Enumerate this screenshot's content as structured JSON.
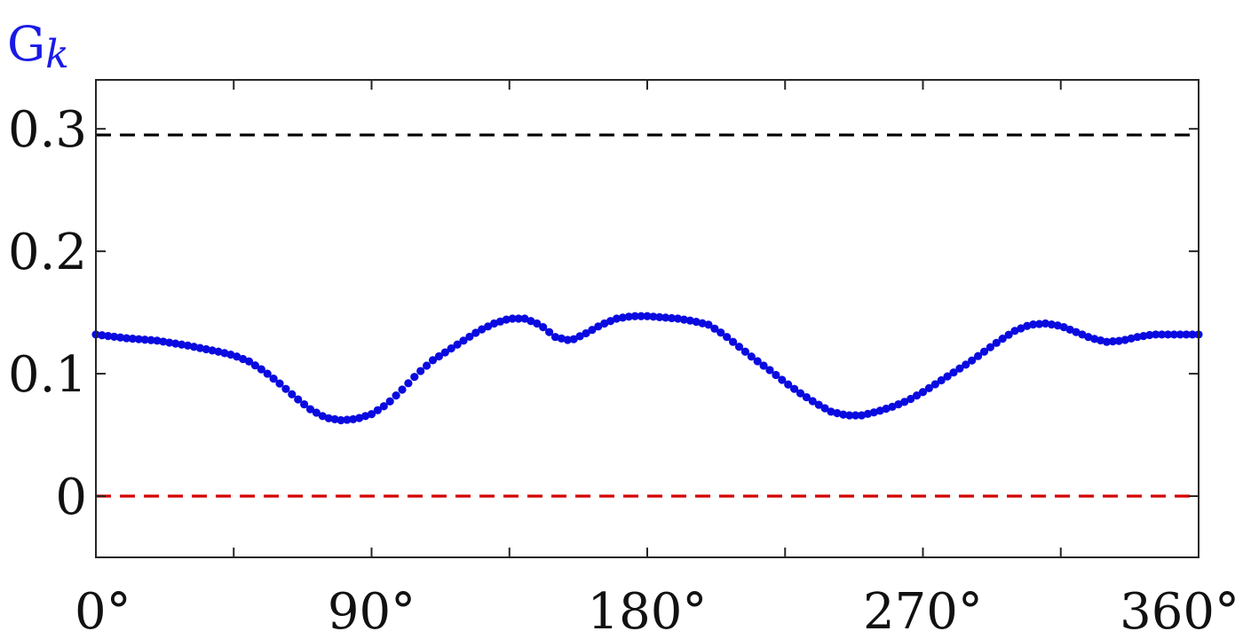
{
  "chart_data": {
    "type": "scatter",
    "title": "",
    "xlabel": "",
    "ylabel": "Gk",
    "ylabel_main": "G",
    "ylabel_sub": "k",
    "xlim": [
      0,
      360
    ],
    "ylim": [
      -0.05,
      0.34
    ],
    "x_ticks": [
      0,
      45,
      90,
      135,
      180,
      225,
      270,
      315,
      360
    ],
    "x_tick_labels": [
      "0°",
      "",
      "90°",
      "",
      "180°",
      "",
      "270°",
      "",
      "360°"
    ],
    "y_ticks": [
      0,
      0.1,
      0.2,
      0.3
    ],
    "y_tick_labels": [
      "0",
      "0.1",
      "0.2",
      "0.3"
    ],
    "grid": false,
    "reference_lines": [
      {
        "y": 0.295,
        "style": "dashed",
        "color": "#000000"
      },
      {
        "y": 0,
        "style": "dashed",
        "color": "#d40000"
      }
    ],
    "series": [
      {
        "color": "#0a0ae0",
        "x": [
          0,
          10,
          20,
          30,
          40,
          45,
          50,
          55,
          60,
          65,
          70,
          75,
          80,
          85,
          90,
          95,
          100,
          105,
          110,
          115,
          120,
          125,
          130,
          135,
          140,
          145,
          150,
          155,
          160,
          165,
          170,
          175,
          180,
          185,
          190,
          195,
          200,
          205,
          210,
          215,
          220,
          225,
          230,
          235,
          240,
          245,
          250,
          255,
          260,
          265,
          270,
          275,
          280,
          285,
          290,
          295,
          300,
          305,
          310,
          315,
          320,
          325,
          330,
          335,
          340,
          345,
          350,
          355,
          360
        ],
        "y": [
          0.132,
          0.129,
          0.127,
          0.123,
          0.118,
          0.115,
          0.11,
          0.102,
          0.092,
          0.081,
          0.071,
          0.064,
          0.062,
          0.063,
          0.067,
          0.075,
          0.087,
          0.1,
          0.111,
          0.119,
          0.127,
          0.135,
          0.141,
          0.145,
          0.145,
          0.14,
          0.13,
          0.127,
          0.133,
          0.14,
          0.145,
          0.147,
          0.147,
          0.146,
          0.145,
          0.143,
          0.14,
          0.132,
          0.122,
          0.112,
          0.103,
          0.093,
          0.084,
          0.076,
          0.069,
          0.066,
          0.066,
          0.069,
          0.073,
          0.078,
          0.085,
          0.093,
          0.101,
          0.109,
          0.118,
          0.127,
          0.135,
          0.14,
          0.141,
          0.139,
          0.134,
          0.129,
          0.126,
          0.127,
          0.13,
          0.132,
          0.132,
          0.132,
          0.132
        ]
      }
    ]
  }
}
